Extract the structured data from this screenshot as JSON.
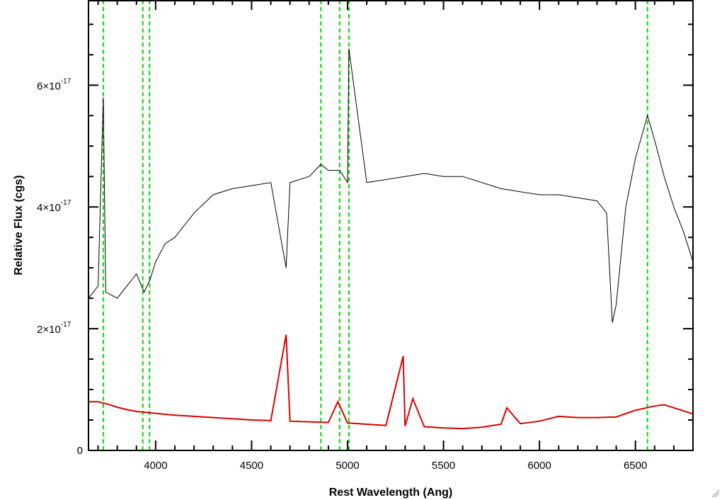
{
  "chart_data": {
    "type": "line",
    "title": "",
    "xlabel": "Rest Wavelength (Ang)",
    "ylabel": "Relative Flux (cgs)",
    "xlim": [
      3650,
      6800
    ],
    "ylim": [
      0,
      7.4e-17
    ],
    "x_ticks": [
      {
        "value": 4000,
        "label": "4000"
      },
      {
        "value": 4500,
        "label": "4500"
      },
      {
        "value": 5000,
        "label": "5000"
      },
      {
        "value": 5500,
        "label": "5500"
      },
      {
        "value": 6000,
        "label": "6000"
      },
      {
        "value": 6500,
        "label": "6500"
      }
    ],
    "y_ticks": [
      {
        "value": 0,
        "label": "0"
      },
      {
        "value": 2e-17,
        "mantissa": "2×10",
        "exponent": "-17"
      },
      {
        "value": 4e-17,
        "mantissa": "4×10",
        "exponent": "-17"
      },
      {
        "value": 6e-17,
        "mantissa": "6×10",
        "exponent": "-17"
      }
    ],
    "grid": false,
    "series": [
      {
        "color": "#000000",
        "x": [
          3650,
          3700,
          3727,
          3740,
          3800,
          3850,
          3900,
          3940,
          3970,
          4000,
          4050,
          4100,
          4150,
          4200,
          4300,
          4400,
          4500,
          4600,
          4680,
          4700,
          4800,
          4861,
          4900,
          4959,
          5000,
          5007,
          5100,
          5200,
          5300,
          5400,
          5500,
          5600,
          5700,
          5800,
          5900,
          6000,
          6100,
          6200,
          6300,
          6350,
          6380,
          6400,
          6450,
          6500,
          6563,
          6600,
          6650,
          6700,
          6750,
          6800
        ],
        "y": [
          2.5e-17,
          2.7e-17,
          5.8e-17,
          2.6e-17,
          2.5e-17,
          2.7e-17,
          2.9e-17,
          2.6e-17,
          2.8e-17,
          3.1e-17,
          3.4e-17,
          3.5e-17,
          3.7e-17,
          3.9e-17,
          4.2e-17,
          4.3e-17,
          4.35e-17,
          4.4e-17,
          3e-17,
          4.4e-17,
          4.5e-17,
          4.7e-17,
          4.6e-17,
          4.6e-17,
          4.4e-17,
          6.6e-17,
          4.4e-17,
          4.45e-17,
          4.5e-17,
          4.55e-17,
          4.5e-17,
          4.5e-17,
          4.4e-17,
          4.3e-17,
          4.25e-17,
          4.2e-17,
          4.2e-17,
          4.15e-17,
          4.1e-17,
          3.9e-17,
          2.1e-17,
          2.4e-17,
          4e-17,
          4.8e-17,
          5.5e-17,
          5.1e-17,
          4.5e-17,
          4e-17,
          3.6e-17,
          3.1e-17
        ]
      },
      {
        "color": "#dd0000",
        "x": [
          3650,
          3700,
          3750,
          3800,
          3850,
          3900,
          4000,
          4100,
          4200,
          4300,
          4400,
          4500,
          4600,
          4680,
          4700,
          4800,
          4900,
          4950,
          5000,
          5100,
          5200,
          5290,
          5300,
          5340,
          5400,
          5500,
          5600,
          5700,
          5800,
          5830,
          5900,
          6000,
          6100,
          6200,
          6300,
          6400,
          6500,
          6600,
          6650,
          6700,
          6800
        ],
        "y": [
          8e-18,
          8e-18,
          7.6e-18,
          7.1e-18,
          6.7e-18,
          6.4e-18,
          6.1e-18,
          5.8e-18,
          5.6e-18,
          5.4e-18,
          5.2e-18,
          5e-18,
          4.9e-18,
          1.9e-17,
          4.8e-18,
          4.7e-18,
          4.6e-18,
          8e-18,
          4.5e-18,
          4.3e-18,
          4.1e-18,
          1.55e-17,
          4e-18,
          8.5e-18,
          3.9e-18,
          3.7e-18,
          3.6e-18,
          3.8e-18,
          4.3e-18,
          7e-18,
          4.4e-18,
          4.8e-18,
          5.6e-18,
          5.4e-18,
          5.4e-18,
          5.5e-18,
          6.6e-18,
          7.3e-18,
          7.5e-18,
          7e-18,
          6e-18
        ]
      }
    ],
    "vertical_lines": {
      "color": "#00dd00",
      "style": "dashed",
      "x": [
        3727,
        3933,
        3968,
        4861,
        4959,
        5007,
        6563
      ]
    }
  }
}
